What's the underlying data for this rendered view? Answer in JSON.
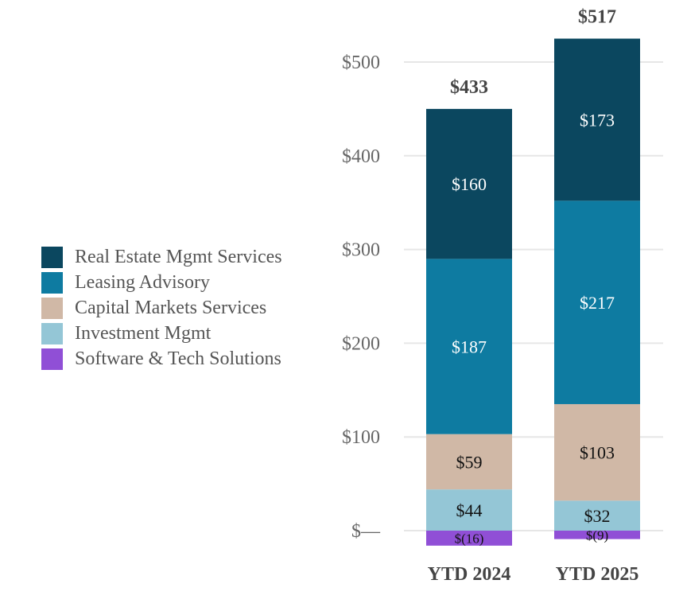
{
  "chart_data": {
    "type": "bar",
    "stacked": true,
    "categories": [
      "YTD 2024",
      "YTD 2025"
    ],
    "totals": [
      433,
      517
    ],
    "total_labels": [
      "$433",
      "$517"
    ],
    "series": [
      {
        "name": "Software & Tech Solutions",
        "values": [
          -16,
          -9
        ],
        "labels": [
          "$(16)",
          "$(9)"
        ],
        "color": "#904fd6"
      },
      {
        "name": "Investment Mgmt",
        "values": [
          44,
          32
        ],
        "labels": [
          "$44",
          "$32"
        ],
        "color": "#94c6d6"
      },
      {
        "name": "Capital Markets Services",
        "values": [
          59,
          103
        ],
        "labels": [
          "$59",
          "$103"
        ],
        "color": "#d0b8a6"
      },
      {
        "name": "Leasing Advisory",
        "values": [
          187,
          217
        ],
        "labels": [
          "$187",
          "$217"
        ],
        "color": "#0e7ba1"
      },
      {
        "name": "Real Estate Mgmt Services",
        "values": [
          160,
          173
        ],
        "labels": [
          "$160",
          "$173"
        ],
        "color": "#0b475f"
      }
    ],
    "yticks": [
      0,
      100,
      200,
      300,
      400,
      500
    ],
    "ytick_labels": [
      "$—",
      "$100",
      "$200",
      "$300",
      "$400",
      "$500"
    ],
    "ylim": [
      -16,
      517
    ],
    "grid": true,
    "legend_position": "left"
  }
}
